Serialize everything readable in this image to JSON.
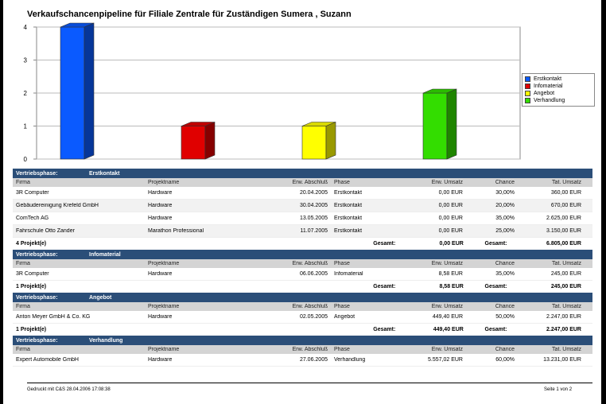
{
  "title": "Verkaufschancenpipeline für Filiale Zentrale für Zuständigen Sumera , Suzann",
  "chart_data": {
    "type": "bar",
    "categories": [
      "Erstkontakt",
      "Infomaterial",
      "Angebot",
      "Verhandlung"
    ],
    "values": [
      4,
      1,
      1,
      2
    ],
    "ylim": [
      0,
      4
    ],
    "yticks": [
      "0",
      "1",
      "2",
      "3",
      "4"
    ],
    "colors": [
      "#0a5aff",
      "#e00000",
      "#ffff00",
      "#33dd00"
    ],
    "grid": true,
    "legend_position": "right"
  },
  "legend": [
    {
      "label": "Erstkontakt",
      "color": "#0a5aff"
    },
    {
      "label": "Infomaterial",
      "color": "#e00000"
    },
    {
      "label": "Angebot",
      "color": "#ffff00"
    },
    {
      "label": "Verhandlung",
      "color": "#33dd00"
    }
  ],
  "columns": [
    "Firma",
    "Projektname",
    "Erw. Abschluß",
    "Phase",
    "Erw. Umsatz",
    "Chance",
    "Tat. Umsatz"
  ],
  "sections": [
    {
      "label": "Vertriebsphase:",
      "phase": "Erstkontakt",
      "rows": [
        [
          "3R Computer",
          "Hardware",
          "20.04.2005",
          "Erstkontakt",
          "0,00 EUR",
          "30,00%",
          "360,00 EUR"
        ],
        [
          "Gebäudereinigung Krefeld GmbH",
          "Hardware",
          "30.04.2005",
          "Erstkontakt",
          "0,00 EUR",
          "20,00%",
          "670,00 EUR"
        ],
        [
          "ComTech AG",
          "Hardware",
          "13.05.2005",
          "Erstkontakt",
          "0,00 EUR",
          "35,00%",
          "2.625,00 EUR"
        ],
        [
          "Fahrschule Otto Zander",
          "Marathon Professional",
          "11.07.2005",
          "Erstkontakt",
          "0,00 EUR",
          "25,00%",
          "3.150,00 EUR"
        ]
      ],
      "summary": {
        "count": "4 Projekt(e)",
        "label1": "Gesamt:",
        "value1": "0,00 EUR",
        "label2": "Gesamt:",
        "value2": "6.805,00 EUR"
      }
    },
    {
      "label": "Vertriebsphase:",
      "phase": "Infomaterial",
      "rows": [
        [
          "3R Computer",
          "Hardware",
          "06.06.2005",
          "Infomaterial",
          "8,58 EUR",
          "35,00%",
          "245,00 EUR"
        ]
      ],
      "summary": {
        "count": "1 Projekt(e)",
        "label1": "Gesamt:",
        "value1": "8,58 EUR",
        "label2": "Gesamt:",
        "value2": "245,00 EUR"
      }
    },
    {
      "label": "Vertriebsphase:",
      "phase": "Angebot",
      "rows": [
        [
          "Anton Meyer GmbH & Co. KG",
          "Hardware",
          "02.05.2005",
          "Angebot",
          "449,40 EUR",
          "50,00%",
          "2.247,00 EUR"
        ]
      ],
      "summary": {
        "count": "1 Projekt(e)",
        "label1": "Gesamt:",
        "value1": "449,40 EUR",
        "label2": "Gesamt:",
        "value2": "2.247,00 EUR"
      }
    },
    {
      "label": "Vertriebsphase:",
      "phase": "Verhandlung",
      "rows": [
        [
          "Expert Automobile GmbH",
          "Hardware",
          "27.06.2005",
          "Verhandlung",
          "5.557,02 EUR",
          "60,00%",
          "13.231,00 EUR"
        ]
      ]
    }
  ],
  "footer": {
    "left": "Gedruckt mit C&S 28.04.2006 17:08:38",
    "right": "Seite 1 von 2"
  }
}
